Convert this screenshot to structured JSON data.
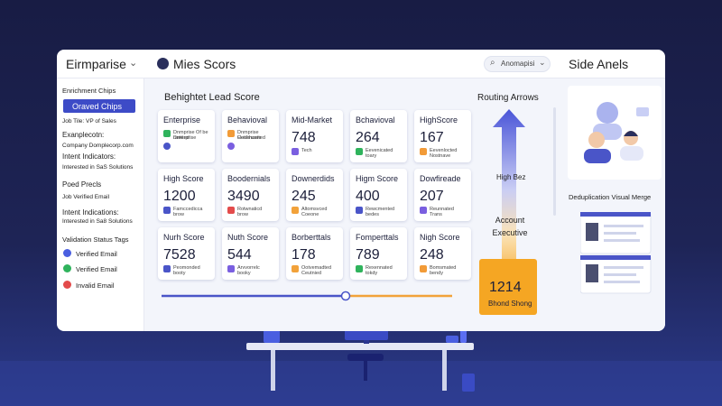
{
  "top_bar": {
    "workspace": "Eirmparise",
    "app_title": "Mies Scors",
    "search": "Anomapisi",
    "side_title": "Side Anels"
  },
  "sidebar": {
    "enrichment_title": "Enrichment Chips",
    "chip_button": "Oraved Chips",
    "lines": [
      "Job Tile: VP of Sales",
      "Exanplecotn:",
      "Company Domplecorp.com",
      "Intent Indicators:",
      "Interested in SaS Solutions"
    ],
    "section2_title": "Poed Precls",
    "lines2": [
      "Job Verified Email",
      "Intent Indications:",
      "Interested in Sa8 Solutions"
    ],
    "validation_title": "Validation Status Tags",
    "tags": [
      "Verified Email",
      "Verified Email",
      "Invalid Email"
    ]
  },
  "lead_score": {
    "title": "Behightet Lead Score",
    "cards": [
      {
        "label": "Enterprise",
        "lines": [
          "Dnmprise Of be ruwited",
          "Dnterprise"
        ]
      },
      {
        "label": "Behavioval",
        "lines": [
          "Dnmprise Cotteruwited",
          "Healthcare"
        ]
      },
      {
        "label": "Mid-Market",
        "value": "748",
        "lines": [
          "Tech"
        ]
      },
      {
        "label": "Bchavioval",
        "value": "264",
        "lines": [
          "Eevenicated",
          "toary"
        ]
      },
      {
        "label": "HighScore",
        "value": "167",
        "lines": [
          "Eevenlocted",
          "Nostnave"
        ]
      },
      {
        "label": "High Score",
        "value": "1200",
        "lines": [
          "Famccedicca",
          "brow"
        ]
      },
      {
        "label": "Boodernials",
        "value": "3490",
        "lines": [
          "Rotwnaticd",
          "brow"
        ]
      },
      {
        "label": "Downerdids",
        "value": "245",
        "lines": [
          "Altomsvced",
          "Coeone"
        ]
      },
      {
        "label": "Higm Score",
        "value": "400",
        "lines": [
          "Rewcmented",
          "bedes"
        ]
      },
      {
        "label": "Dowfireade",
        "value": "207",
        "lines": [
          "Reunnated",
          "Trans"
        ]
      },
      {
        "label": "Nurh Score",
        "value": "7528",
        "lines": [
          "Peomonded",
          "booty"
        ]
      },
      {
        "label": "Nuth Score",
        "value": "544",
        "lines": [
          "Arvvorrelc",
          "booky"
        ]
      },
      {
        "label": "Borberttals",
        "value": "178",
        "lines": [
          "Ootvemadted",
          "Ceutnied"
        ]
      },
      {
        "label": "Fomperttals",
        "value": "789",
        "lines": [
          "Rexennated",
          "tokdy"
        ]
      },
      {
        "label": "Nigh Score",
        "value": "248",
        "lines": [
          "Bomsmated",
          "bendy"
        ]
      }
    ]
  },
  "routing": {
    "title": "Routing Arrows",
    "level": "High Bez",
    "target": "Account Executive",
    "score": "1214",
    "score_caption": "Bhond Shong"
  },
  "dedup": {
    "title": "Deduplication Visual Merge"
  }
}
